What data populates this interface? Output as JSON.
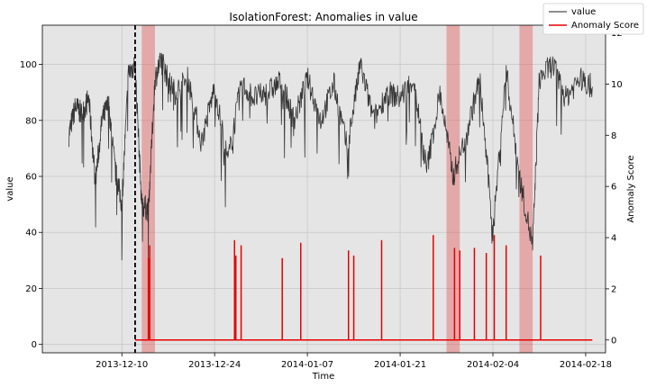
{
  "chart_data": {
    "type": "line",
    "title": "IsolationForest: Anomalies in value",
    "xlabel": "Time",
    "ylabel": "value",
    "ylabel_right": "Anomaly Score",
    "x_ticks": [
      "2013-12-10",
      "2013-12-24",
      "2014-01-07",
      "2014-01-21",
      "2014-02-04",
      "2014-02-18"
    ],
    "xlim": [
      "2013-11-28",
      "2014-02-21"
    ],
    "y_ticks": [
      0,
      20,
      40,
      60,
      80,
      100
    ],
    "ylim": [
      -3,
      114
    ],
    "y2_ticks": [
      0,
      2,
      4,
      6,
      8,
      10,
      12
    ],
    "y2lim": [
      -0.5,
      12.3
    ],
    "grid": true,
    "legend_placement": "top-right",
    "legend": [
      {
        "label": "value",
        "color": "#222222"
      },
      {
        "label": "Anomaly Score",
        "color": "#e60000"
      }
    ],
    "train_cutoff": "2013-12-12",
    "anomaly_windows": [
      [
        "2013-12-13",
        "2013-12-15"
      ],
      [
        "2014-01-28",
        "2014-01-30"
      ],
      [
        "2014-02-08",
        "2014-02-10"
      ]
    ],
    "series": [
      {
        "name": "value",
        "color": "#222222",
        "points": [
          [
            "2013-12-02",
            75
          ],
          [
            "2013-12-03",
            85
          ],
          [
            "2013-12-04",
            82
          ],
          [
            "2013-12-05",
            88
          ],
          [
            "2013-12-06",
            58
          ],
          [
            "2013-12-07",
            80
          ],
          [
            "2013-12-08",
            86
          ],
          [
            "2013-12-09",
            62
          ],
          [
            "2013-12-10",
            50
          ],
          [
            "2013-12-11",
            97
          ],
          [
            "2013-12-12",
            100
          ],
          [
            "2013-12-13",
            50
          ],
          [
            "2013-12-14",
            48
          ],
          [
            "2013-12-15",
            95
          ],
          [
            "2013-12-16",
            102
          ],
          [
            "2013-12-17",
            94
          ],
          [
            "2013-12-18",
            90
          ],
          [
            "2013-12-20",
            95
          ],
          [
            "2013-12-22",
            72
          ],
          [
            "2013-12-24",
            92
          ],
          [
            "2013-12-26",
            65
          ],
          [
            "2013-12-28",
            93
          ],
          [
            "2013-12-30",
            88
          ],
          [
            "2014-01-01",
            90
          ],
          [
            "2014-01-03",
            94
          ],
          [
            "2014-01-05",
            80
          ],
          [
            "2014-01-07",
            95
          ],
          [
            "2014-01-09",
            80
          ],
          [
            "2014-01-11",
            93
          ],
          [
            "2014-01-13",
            70
          ],
          [
            "2014-01-15",
            100
          ],
          [
            "2014-01-17",
            80
          ],
          [
            "2014-01-19",
            90
          ],
          [
            "2014-01-21",
            88
          ],
          [
            "2014-01-23",
            95
          ],
          [
            "2014-01-25",
            62
          ],
          [
            "2014-01-27",
            90
          ],
          [
            "2014-01-29",
            60
          ],
          [
            "2014-01-31",
            75
          ],
          [
            "2014-02-02",
            95
          ],
          [
            "2014-02-04",
            40
          ],
          [
            "2014-02-06",
            98
          ],
          [
            "2014-02-08",
            60
          ],
          [
            "2014-02-10",
            35
          ],
          [
            "2014-02-11",
            95
          ],
          [
            "2014-02-13",
            100
          ],
          [
            "2014-02-15",
            88
          ],
          [
            "2014-02-17",
            95
          ],
          [
            "2014-02-19",
            92
          ]
        ]
      },
      {
        "name": "Anomaly Score",
        "color": "#e60000",
        "axis": "right",
        "baseline": 0,
        "start": "2013-12-12",
        "end": "2014-02-19",
        "spikes": [
          [
            "2013-12-14",
            3.2
          ],
          [
            "2013-12-14",
            3.7
          ],
          [
            "2013-12-27",
            3.9
          ],
          [
            "2013-12-27",
            3.3
          ],
          [
            "2013-12-28",
            3.7
          ],
          [
            "2014-01-03",
            3.2
          ],
          [
            "2014-01-06",
            3.8
          ],
          [
            "2014-01-13",
            3.5
          ],
          [
            "2014-01-14",
            3.3
          ],
          [
            "2014-01-18",
            3.9
          ],
          [
            "2014-01-26",
            4.1
          ],
          [
            "2014-01-29",
            3.6
          ],
          [
            "2014-01-30",
            3.5
          ],
          [
            "2014-02-01",
            3.6
          ],
          [
            "2014-02-03",
            3.4
          ],
          [
            "2014-02-04",
            4.1
          ],
          [
            "2014-02-06",
            3.7
          ],
          [
            "2014-02-11",
            3.3
          ]
        ]
      }
    ]
  }
}
